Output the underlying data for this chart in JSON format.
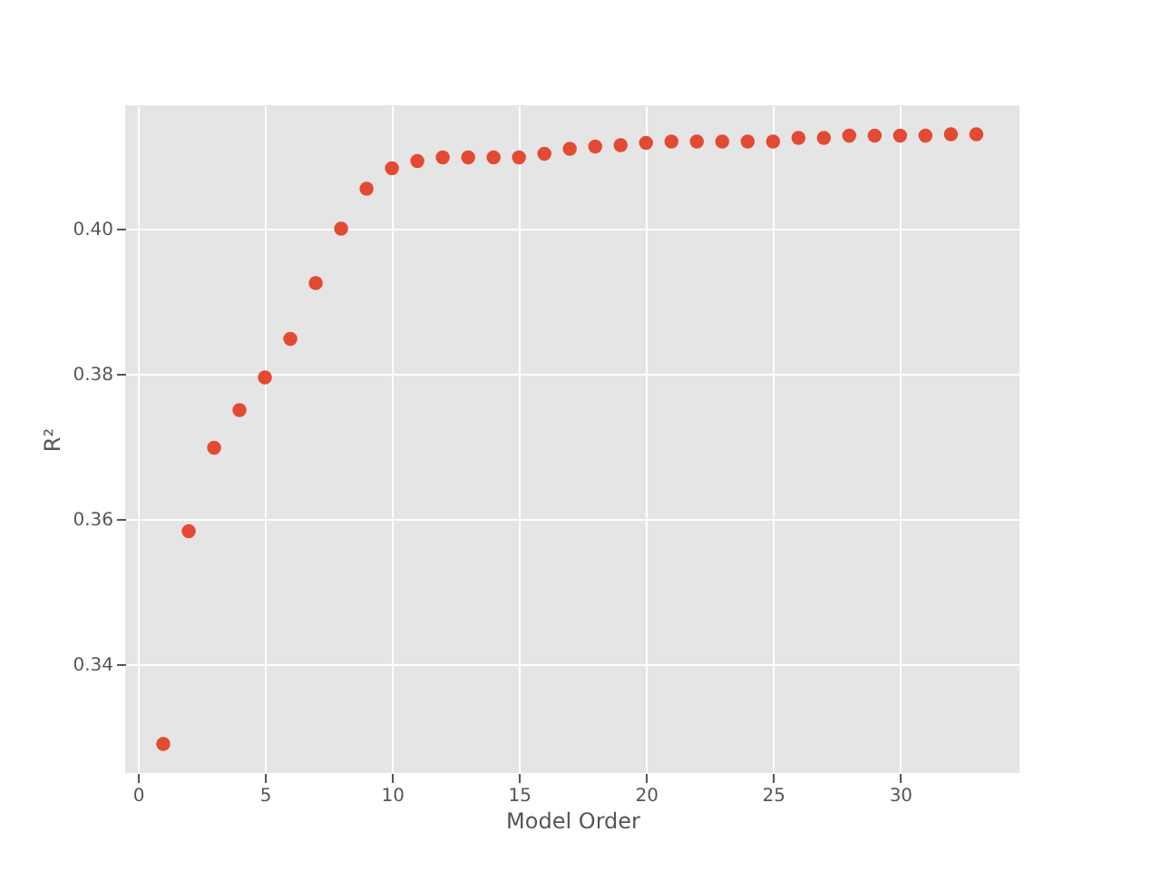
{
  "chart_data": {
    "type": "scatter",
    "xlabel": "Model Order",
    "ylabel": "R²",
    "x": [
      1,
      2,
      3,
      4,
      5,
      6,
      7,
      8,
      9,
      10,
      11,
      12,
      13,
      14,
      15,
      16,
      17,
      18,
      19,
      20,
      21,
      22,
      23,
      24,
      25,
      26,
      27,
      28,
      29,
      30,
      31,
      32,
      33
    ],
    "series": [
      {
        "color": "#e24a33",
        "values": [
          0.329,
          0.3583,
          0.3698,
          0.375,
          0.3795,
          0.3848,
          0.3925,
          0.4,
          0.4055,
          0.4083,
          0.4093,
          0.4098,
          0.4098,
          0.4098,
          0.4098,
          0.4103,
          0.411,
          0.4113,
          0.4115,
          0.4118,
          0.412,
          0.412,
          0.412,
          0.412,
          0.412,
          0.4125,
          0.4125,
          0.4128,
          0.4128,
          0.4128,
          0.4128,
          0.413,
          0.413
        ]
      }
    ],
    "xlim": [
      -0.5,
      34.7
    ],
    "ylim": [
      0.325,
      0.417
    ],
    "xticks": [
      0,
      5,
      10,
      15,
      20,
      25,
      30
    ],
    "yticks": [
      {
        "value": 0.34,
        "label": "0.34"
      },
      {
        "value": 0.36,
        "label": "0.36"
      },
      {
        "value": 0.38,
        "label": "0.38"
      },
      {
        "value": 0.4,
        "label": "0.40"
      }
    ],
    "grid": true,
    "marker": "circle"
  }
}
